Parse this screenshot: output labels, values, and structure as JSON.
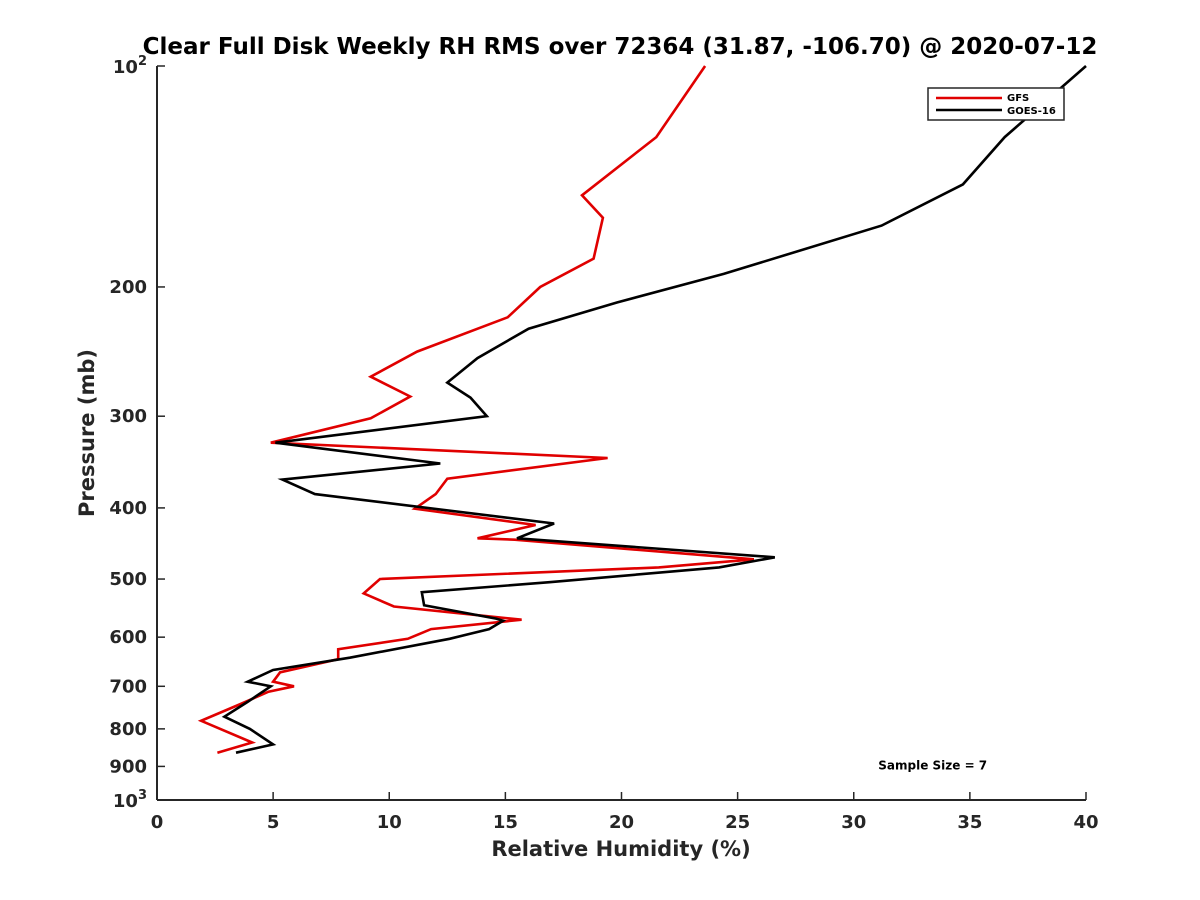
{
  "chart_data": {
    "type": "line",
    "title": "Clear Full Disk Weekly RH RMS over 72364 (31.87, -106.70) @ 2020-07-12",
    "xlabel": "Relative Humidity (%)",
    "ylabel": "Pressure (mb)",
    "xlim": [
      0,
      40
    ],
    "ylim": [
      100,
      1000
    ],
    "yscale": "log",
    "y_reversed": true,
    "grid": false,
    "legend_position": "top-right",
    "x_ticks": [
      {
        "value": 0,
        "label": "0"
      },
      {
        "value": 5,
        "label": "5"
      },
      {
        "value": 10,
        "label": "10"
      },
      {
        "value": 15,
        "label": "15"
      },
      {
        "value": 20,
        "label": "20"
      },
      {
        "value": 25,
        "label": "25"
      },
      {
        "value": 30,
        "label": "30"
      },
      {
        "value": 35,
        "label": "35"
      },
      {
        "value": 40,
        "label": "40"
      }
    ],
    "y_ticks": [
      {
        "value": 200,
        "label": "200"
      },
      {
        "value": 300,
        "label": "300"
      },
      {
        "value": 400,
        "label": "400"
      },
      {
        "value": 500,
        "label": "500"
      },
      {
        "value": 600,
        "label": "600"
      },
      {
        "value": 700,
        "label": "700"
      },
      {
        "value": 800,
        "label": "800"
      },
      {
        "value": 900,
        "label": "900"
      }
    ],
    "y_power_ticks": [
      {
        "value": 100,
        "base": "10",
        "exp": "2"
      },
      {
        "value": 1000,
        "base": "10",
        "exp": "3"
      }
    ],
    "annotations": [
      {
        "text": "Sample Size = 7",
        "x": 33.4,
        "y": 897
      }
    ],
    "series": [
      {
        "name": "GFS",
        "color": "#e00000",
        "points": [
          [
            23.6,
            100
          ],
          [
            21.5,
            125
          ],
          [
            18.3,
            150
          ],
          [
            19.2,
            161
          ],
          [
            18.8,
            183
          ],
          [
            16.5,
            200
          ],
          [
            15.1,
            220
          ],
          [
            11.2,
            245
          ],
          [
            9.2,
            265
          ],
          [
            10.9,
            282
          ],
          [
            9.2,
            302
          ],
          [
            4.9,
            326
          ],
          [
            19.4,
            342
          ],
          [
            12.5,
            365
          ],
          [
            12.0,
            383
          ],
          [
            11.1,
            401
          ],
          [
            16.3,
            422
          ],
          [
            13.8,
            440
          ],
          [
            15.4,
            442
          ],
          [
            25.7,
            470
          ],
          [
            21.6,
            482
          ],
          [
            9.6,
            500
          ],
          [
            8.9,
            523
          ],
          [
            10.2,
            545
          ],
          [
            15.7,
            568
          ],
          [
            11.8,
            585
          ],
          [
            10.8,
            603
          ],
          [
            7.8,
            623
          ],
          [
            7.8,
            643
          ],
          [
            5.3,
            670
          ],
          [
            5.0,
            690
          ],
          [
            5.9,
            700
          ],
          [
            4.8,
            712
          ],
          [
            3.6,
            740
          ],
          [
            1.9,
            780
          ],
          [
            4.1,
            835
          ],
          [
            2.6,
            862
          ]
        ]
      },
      {
        "name": "GOES-16",
        "color": "#000000",
        "points": [
          [
            40.0,
            100
          ],
          [
            36.5,
            125
          ],
          [
            34.7,
            145
          ],
          [
            31.2,
            165
          ],
          [
            24.4,
            192
          ],
          [
            19.8,
            210
          ],
          [
            16.0,
            228
          ],
          [
            13.8,
            250
          ],
          [
            12.5,
            270
          ],
          [
            13.5,
            283
          ],
          [
            14.2,
            300
          ],
          [
            5.1,
            326
          ],
          [
            12.2,
            348
          ],
          [
            5.4,
            366
          ],
          [
            6.8,
            383
          ],
          [
            17.1,
            420
          ],
          [
            15.5,
            440
          ],
          [
            26.6,
            467
          ],
          [
            24.2,
            482
          ],
          [
            16.9,
            505
          ],
          [
            11.4,
            521
          ],
          [
            11.5,
            543
          ],
          [
            14.6,
            566
          ],
          [
            14.9,
            570
          ],
          [
            14.3,
            585
          ],
          [
            12.6,
            603
          ],
          [
            8.3,
            640
          ],
          [
            5.0,
            665
          ],
          [
            3.9,
            690
          ],
          [
            4.9,
            700
          ],
          [
            3.9,
            735
          ],
          [
            2.9,
            770
          ],
          [
            4.0,
            800
          ],
          [
            5.0,
            840
          ],
          [
            3.4,
            862
          ]
        ]
      }
    ]
  }
}
